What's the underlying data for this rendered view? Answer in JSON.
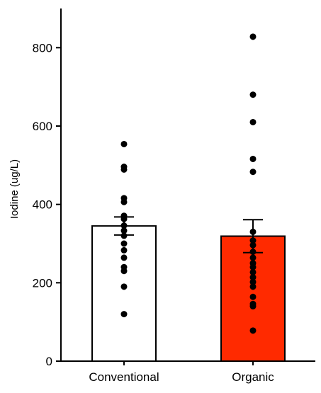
{
  "chart_data": {
    "type": "bar",
    "title": "",
    "xlabel": "",
    "ylabel": "Iodine (ug/L)",
    "ylim": [
      0,
      900
    ],
    "yticks": [
      0,
      200,
      400,
      600,
      800
    ],
    "grid": false,
    "categories": [
      "Conventional",
      "Organic"
    ],
    "colors": [
      "#ffffff",
      "#ff2a00"
    ],
    "bar_edge_color": "#000000",
    "series": [
      {
        "values": [
          345,
          319
        ],
        "error": [
          23,
          42
        ],
        "points": [
          [
            554,
            496,
            489,
            416,
            406,
            371,
            363,
            346,
            333,
            320,
            300,
            283,
            264,
            240,
            230,
            190,
            120
          ],
          [
            828,
            680,
            610,
            516,
            483,
            330,
            308,
            296,
            279,
            264,
            250,
            240,
            227,
            214,
            202,
            190,
            164,
            146,
            140,
            78
          ]
        ]
      }
    ]
  }
}
